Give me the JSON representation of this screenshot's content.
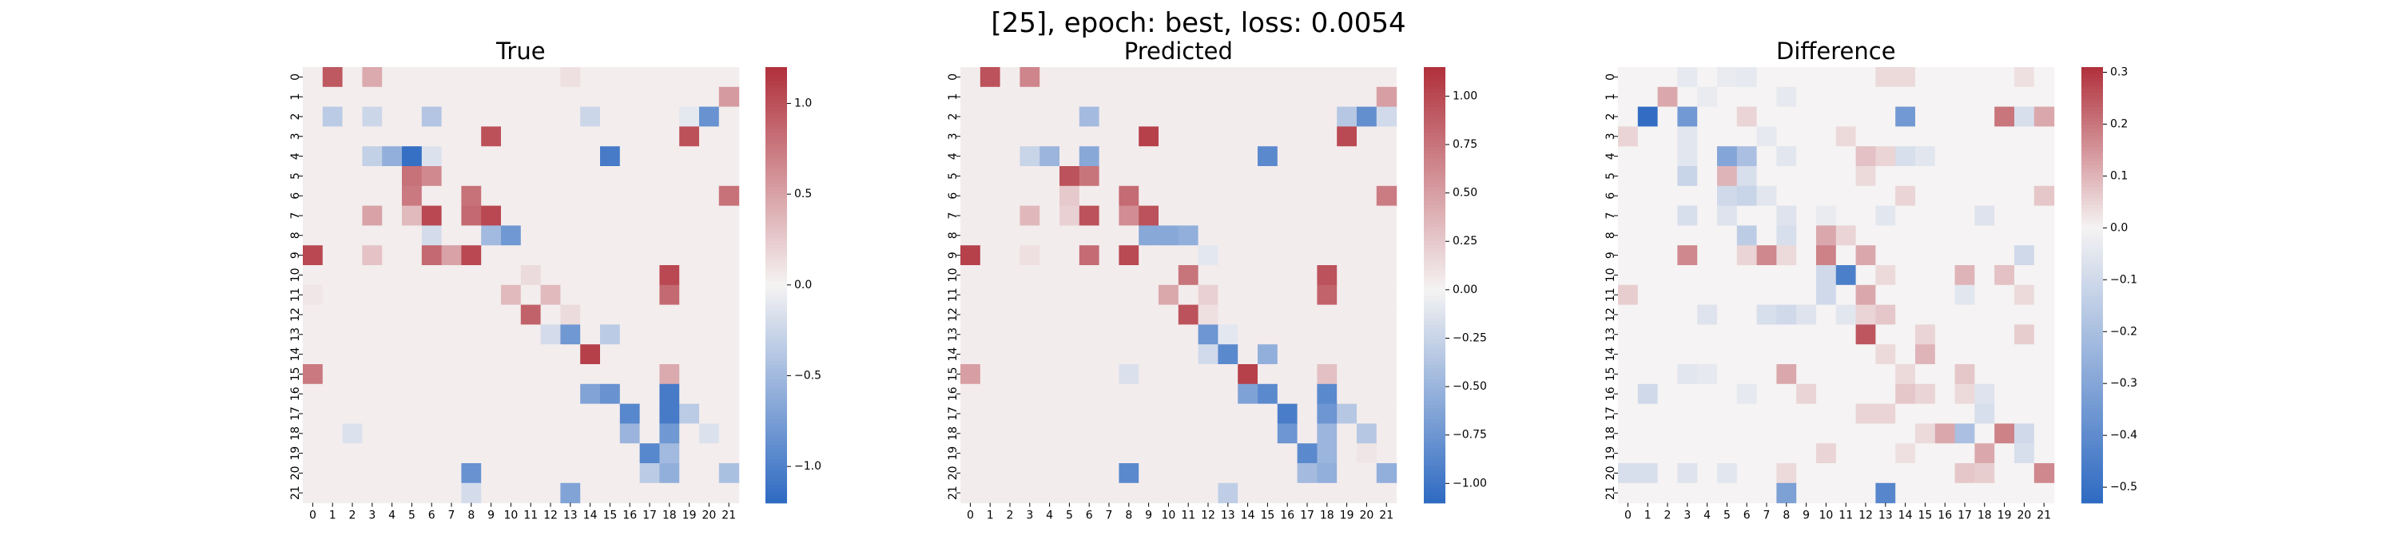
{
  "figure": {
    "suptitle": "[25], epoch: best, loss: 0.0054"
  },
  "chart_data": [
    {
      "type": "heatmap",
      "title": "True",
      "rows": [
        "0",
        "1",
        "2",
        "3",
        "4",
        "5",
        "6",
        "7",
        "8",
        "9",
        "10",
        "11",
        "12",
        "13",
        "14",
        "15",
        "16",
        "17",
        "18",
        "19",
        "20",
        "21"
      ],
      "cols": [
        "0",
        "1",
        "2",
        "3",
        "4",
        "5",
        "6",
        "7",
        "8",
        "9",
        "10",
        "11",
        "12",
        "13",
        "14",
        "15",
        "16",
        "17",
        "18",
        "19",
        "20",
        "21"
      ],
      "colormap": {
        "name": "vlag",
        "low": "#2e6ac2",
        "mid": "#f5f3f3",
        "high": "#b0303b"
      },
      "vmin": -1.2,
      "vmax": 1.2,
      "colorbar_ticks": [
        -1.0,
        -0.5,
        0.0,
        0.5,
        1.0
      ],
      "colorbar_ticklabels": [
        "−1.0",
        "−0.5",
        "0.0",
        "0.5",
        "1.0"
      ],
      "background": 0.04,
      "cells": [
        [
          0,
          1,
          0.95
        ],
        [
          0,
          3,
          0.45
        ],
        [
          0,
          13,
          0.12
        ],
        [
          1,
          21,
          0.55
        ],
        [
          2,
          1,
          -0.35
        ],
        [
          2,
          3,
          -0.25
        ],
        [
          2,
          6,
          -0.4
        ],
        [
          2,
          14,
          -0.25
        ],
        [
          2,
          19,
          -0.1
        ],
        [
          2,
          20,
          -0.85
        ],
        [
          3,
          9,
          1.0
        ],
        [
          3,
          19,
          1.0
        ],
        [
          4,
          3,
          -0.3
        ],
        [
          4,
          4,
          -0.6
        ],
        [
          4,
          5,
          -1.15
        ],
        [
          4,
          6,
          -0.15
        ],
        [
          4,
          15,
          -1.05
        ],
        [
          5,
          5,
          0.8
        ],
        [
          5,
          6,
          0.65
        ],
        [
          6,
          5,
          0.75
        ],
        [
          6,
          8,
          0.8
        ],
        [
          6,
          21,
          0.8
        ],
        [
          7,
          3,
          0.5
        ],
        [
          7,
          5,
          0.35
        ],
        [
          7,
          6,
          1.05
        ],
        [
          7,
          8,
          0.85
        ],
        [
          7,
          9,
          1.05
        ],
        [
          8,
          6,
          -0.2
        ],
        [
          8,
          9,
          -0.5
        ],
        [
          8,
          10,
          -0.8
        ],
        [
          9,
          0,
          1.05
        ],
        [
          9,
          3,
          0.3
        ],
        [
          9,
          6,
          0.85
        ],
        [
          9,
          7,
          0.5
        ],
        [
          9,
          8,
          1.05
        ],
        [
          10,
          11,
          0.15
        ],
        [
          10,
          18,
          1.05
        ],
        [
          11,
          0,
          0.08
        ],
        [
          11,
          10,
          0.35
        ],
        [
          11,
          12,
          0.35
        ],
        [
          11,
          18,
          0.85
        ],
        [
          12,
          11,
          0.9
        ],
        [
          12,
          13,
          0.15
        ],
        [
          13,
          12,
          -0.2
        ],
        [
          13,
          13,
          -0.8
        ],
        [
          13,
          15,
          -0.35
        ],
        [
          14,
          14,
          1.1
        ],
        [
          15,
          0,
          0.75
        ],
        [
          15,
          18,
          0.45
        ],
        [
          16,
          14,
          -0.7
        ],
        [
          16,
          15,
          -0.85
        ],
        [
          16,
          18,
          -1.05
        ],
        [
          17,
          16,
          -0.95
        ],
        [
          17,
          18,
          -1.05
        ],
        [
          17,
          19,
          -0.35
        ],
        [
          18,
          2,
          -0.15
        ],
        [
          18,
          16,
          -0.55
        ],
        [
          18,
          18,
          -0.8
        ],
        [
          18,
          20,
          -0.15
        ],
        [
          19,
          17,
          -0.95
        ],
        [
          19,
          18,
          -0.5
        ],
        [
          20,
          8,
          -0.85
        ],
        [
          20,
          17,
          -0.35
        ],
        [
          20,
          18,
          -0.6
        ],
        [
          20,
          21,
          -0.45
        ],
        [
          21,
          8,
          -0.2
        ],
        [
          21,
          13,
          -0.7
        ]
      ]
    },
    {
      "type": "heatmap",
      "title": "Predicted",
      "rows": [
        "0",
        "1",
        "2",
        "3",
        "4",
        "5",
        "6",
        "7",
        "8",
        "9",
        "10",
        "11",
        "12",
        "13",
        "14",
        "15",
        "16",
        "17",
        "18",
        "19",
        "20",
        "21"
      ],
      "cols": [
        "0",
        "1",
        "2",
        "3",
        "4",
        "5",
        "6",
        "7",
        "8",
        "9",
        "10",
        "11",
        "12",
        "13",
        "14",
        "15",
        "16",
        "17",
        "18",
        "19",
        "20",
        "21"
      ],
      "colormap": {
        "name": "vlag",
        "low": "#2e6ac2",
        "mid": "#f5f3f3",
        "high": "#b0303b"
      },
      "vmin": -1.1,
      "vmax": 1.15,
      "colorbar_ticks": [
        -1.0,
        -0.75,
        -0.5,
        -0.25,
        0.0,
        0.25,
        0.5,
        0.75,
        1.0
      ],
      "colorbar_ticklabels": [
        "−1.00",
        "−0.75",
        "−0.50",
        "−0.25",
        "0.00",
        "0.25",
        "0.50",
        "0.75",
        "1.00"
      ],
      "background": 0.04,
      "cells": [
        [
          0,
          1,
          0.95
        ],
        [
          0,
          3,
          0.65
        ],
        [
          1,
          21,
          0.5
        ],
        [
          2,
          6,
          -0.45
        ],
        [
          2,
          19,
          -0.35
        ],
        [
          2,
          20,
          -0.8
        ],
        [
          2,
          21,
          -0.2
        ],
        [
          3,
          9,
          1.05
        ],
        [
          3,
          19,
          1.0
        ],
        [
          4,
          3,
          -0.25
        ],
        [
          4,
          4,
          -0.5
        ],
        [
          4,
          6,
          -0.6
        ],
        [
          4,
          15,
          -0.85
        ],
        [
          5,
          5,
          0.95
        ],
        [
          5,
          6,
          0.75
        ],
        [
          6,
          5,
          0.25
        ],
        [
          6,
          8,
          0.8
        ],
        [
          6,
          21,
          0.7
        ],
        [
          7,
          3,
          0.35
        ],
        [
          7,
          5,
          0.2
        ],
        [
          7,
          6,
          0.95
        ],
        [
          7,
          8,
          0.6
        ],
        [
          7,
          9,
          0.95
        ],
        [
          8,
          9,
          -0.6
        ],
        [
          8,
          10,
          -0.6
        ],
        [
          8,
          11,
          -0.55
        ],
        [
          9,
          0,
          1.05
        ],
        [
          9,
          3,
          0.12
        ],
        [
          9,
          6,
          0.8
        ],
        [
          9,
          8,
          1.0
        ],
        [
          9,
          12,
          -0.1
        ],
        [
          10,
          11,
          0.75
        ],
        [
          10,
          18,
          0.95
        ],
        [
          11,
          10,
          0.45
        ],
        [
          11,
          12,
          0.2
        ],
        [
          11,
          18,
          0.85
        ],
        [
          12,
          11,
          0.95
        ],
        [
          12,
          12,
          0.12
        ],
        [
          13,
          12,
          -0.75
        ],
        [
          13,
          13,
          -0.1
        ],
        [
          14,
          12,
          -0.2
        ],
        [
          14,
          13,
          -0.85
        ],
        [
          14,
          15,
          -0.55
        ],
        [
          15,
          0,
          0.5
        ],
        [
          15,
          8,
          -0.15
        ],
        [
          15,
          14,
          1.05
        ],
        [
          15,
          18,
          0.3
        ],
        [
          16,
          14,
          -0.65
        ],
        [
          16,
          15,
          -0.85
        ],
        [
          16,
          18,
          -0.85
        ],
        [
          17,
          16,
          -0.95
        ],
        [
          17,
          18,
          -0.75
        ],
        [
          17,
          19,
          -0.35
        ],
        [
          18,
          16,
          -0.75
        ],
        [
          18,
          18,
          -0.5
        ],
        [
          18,
          20,
          -0.35
        ],
        [
          19,
          17,
          -0.85
        ],
        [
          19,
          18,
          -0.5
        ],
        [
          19,
          20,
          0.08
        ],
        [
          20,
          8,
          -0.85
        ],
        [
          20,
          17,
          -0.45
        ],
        [
          20,
          18,
          -0.55
        ],
        [
          20,
          21,
          -0.55
        ],
        [
          21,
          13,
          -0.3
        ]
      ]
    },
    {
      "type": "heatmap",
      "title": "Difference",
      "rows": [
        "0",
        "1",
        "2",
        "3",
        "4",
        "5",
        "6",
        "7",
        "8",
        "9",
        "10",
        "11",
        "12",
        "13",
        "14",
        "15",
        "16",
        "17",
        "18",
        "19",
        "20",
        "21"
      ],
      "cols": [
        "0",
        "1",
        "2",
        "3",
        "4",
        "5",
        "6",
        "7",
        "8",
        "9",
        "10",
        "11",
        "12",
        "13",
        "14",
        "15",
        "16",
        "17",
        "18",
        "19",
        "20",
        "21"
      ],
      "colormap": {
        "name": "vlag",
        "low": "#2e6ac2",
        "mid": "#f5f3f3",
        "high": "#b0303b"
      },
      "vmin": -0.53,
      "vmax": 0.31,
      "colorbar_ticks": [
        -0.5,
        -0.4,
        -0.3,
        -0.2,
        -0.1,
        0.0,
        0.1,
        0.2,
        0.3
      ],
      "colorbar_ticklabels": [
        "−0.5",
        "−0.4",
        "−0.3",
        "−0.2",
        "−0.1",
        "0.0",
        "0.1",
        "0.2",
        "0.3"
      ],
      "background": 0.0,
      "cells": [
        [
          0,
          3,
          -0.04
        ],
        [
          0,
          5,
          -0.03
        ],
        [
          0,
          6,
          -0.04
        ],
        [
          0,
          13,
          0.04
        ],
        [
          0,
          14,
          0.04
        ],
        [
          0,
          20,
          0.03
        ],
        [
          1,
          2,
          0.12
        ],
        [
          1,
          4,
          -0.03
        ],
        [
          1,
          8,
          -0.04
        ],
        [
          2,
          1,
          -0.52
        ],
        [
          2,
          3,
          -0.35
        ],
        [
          2,
          6,
          0.05
        ],
        [
          2,
          14,
          -0.35
        ],
        [
          2,
          19,
          0.2
        ],
        [
          2,
          20,
          -0.08
        ],
        [
          2,
          21,
          0.12
        ],
        [
          3,
          0,
          0.05
        ],
        [
          3,
          3,
          -0.05
        ],
        [
          3,
          7,
          -0.04
        ],
        [
          3,
          11,
          0.04
        ],
        [
          4,
          3,
          -0.05
        ],
        [
          4,
          5,
          -0.3
        ],
        [
          4,
          6,
          -0.2
        ],
        [
          4,
          8,
          -0.05
        ],
        [
          4,
          12,
          0.08
        ],
        [
          4,
          13,
          0.05
        ],
        [
          4,
          14,
          -0.08
        ],
        [
          4,
          15,
          -0.05
        ],
        [
          5,
          3,
          -0.12
        ],
        [
          5,
          5,
          0.1
        ],
        [
          5,
          6,
          -0.08
        ],
        [
          5,
          12,
          0.04
        ],
        [
          6,
          5,
          -0.1
        ],
        [
          6,
          6,
          -0.12
        ],
        [
          6,
          7,
          -0.05
        ],
        [
          6,
          14,
          0.05
        ],
        [
          6,
          21,
          0.07
        ],
        [
          7,
          3,
          -0.08
        ],
        [
          7,
          5,
          -0.06
        ],
        [
          7,
          8,
          -0.06
        ],
        [
          7,
          10,
          -0.03
        ],
        [
          7,
          13,
          -0.05
        ],
        [
          7,
          18,
          -0.06
        ],
        [
          8,
          6,
          -0.15
        ],
        [
          8,
          8,
          -0.08
        ],
        [
          8,
          10,
          0.12
        ],
        [
          8,
          11,
          0.05
        ],
        [
          9,
          3,
          0.17
        ],
        [
          9,
          6,
          0.05
        ],
        [
          9,
          7,
          0.17
        ],
        [
          9,
          8,
          0.04
        ],
        [
          9,
          10,
          0.18
        ],
        [
          9,
          12,
          0.12
        ],
        [
          9,
          20,
          -0.1
        ],
        [
          10,
          10,
          -0.1
        ],
        [
          10,
          11,
          -0.45
        ],
        [
          10,
          13,
          0.04
        ],
        [
          10,
          17,
          0.1
        ],
        [
          10,
          19,
          0.08
        ],
        [
          11,
          0,
          0.06
        ],
        [
          11,
          10,
          -0.1
        ],
        [
          11,
          12,
          0.12
        ],
        [
          11,
          17,
          -0.05
        ],
        [
          11,
          20,
          0.04
        ],
        [
          12,
          4,
          -0.06
        ],
        [
          12,
          7,
          -0.08
        ],
        [
          12,
          8,
          -0.1
        ],
        [
          12,
          9,
          -0.06
        ],
        [
          12,
          11,
          -0.05
        ],
        [
          12,
          12,
          0.05
        ],
        [
          12,
          13,
          0.07
        ],
        [
          13,
          12,
          0.25
        ],
        [
          13,
          15,
          0.05
        ],
        [
          13,
          20,
          0.06
        ],
        [
          14,
          13,
          0.04
        ],
        [
          14,
          15,
          0.1
        ],
        [
          15,
          3,
          -0.05
        ],
        [
          15,
          4,
          -0.04
        ],
        [
          15,
          8,
          0.12
        ],
        [
          15,
          14,
          0.04
        ],
        [
          15,
          17,
          0.07
        ],
        [
          16,
          1,
          -0.1
        ],
        [
          16,
          6,
          -0.04
        ],
        [
          16,
          9,
          0.05
        ],
        [
          16,
          14,
          0.07
        ],
        [
          16,
          15,
          0.05
        ],
        [
          16,
          17,
          0.04
        ],
        [
          16,
          18,
          -0.06
        ],
        [
          17,
          12,
          0.05
        ],
        [
          17,
          13,
          0.05
        ],
        [
          17,
          18,
          -0.08
        ],
        [
          18,
          15,
          0.04
        ],
        [
          18,
          16,
          0.12
        ],
        [
          18,
          17,
          -0.2
        ],
        [
          18,
          19,
          0.18
        ],
        [
          18,
          20,
          -0.1
        ],
        [
          19,
          10,
          0.05
        ],
        [
          19,
          14,
          0.03
        ],
        [
          19,
          18,
          0.12
        ],
        [
          19,
          20,
          -0.08
        ],
        [
          20,
          0,
          -0.08
        ],
        [
          20,
          1,
          -0.08
        ],
        [
          20,
          3,
          -0.06
        ],
        [
          20,
          5,
          -0.05
        ],
        [
          20,
          8,
          0.04
        ],
        [
          20,
          17,
          0.07
        ],
        [
          20,
          18,
          0.06
        ],
        [
          20,
          21,
          0.17
        ],
        [
          21,
          8,
          -0.32
        ],
        [
          21,
          13,
          -0.42
        ]
      ]
    }
  ]
}
